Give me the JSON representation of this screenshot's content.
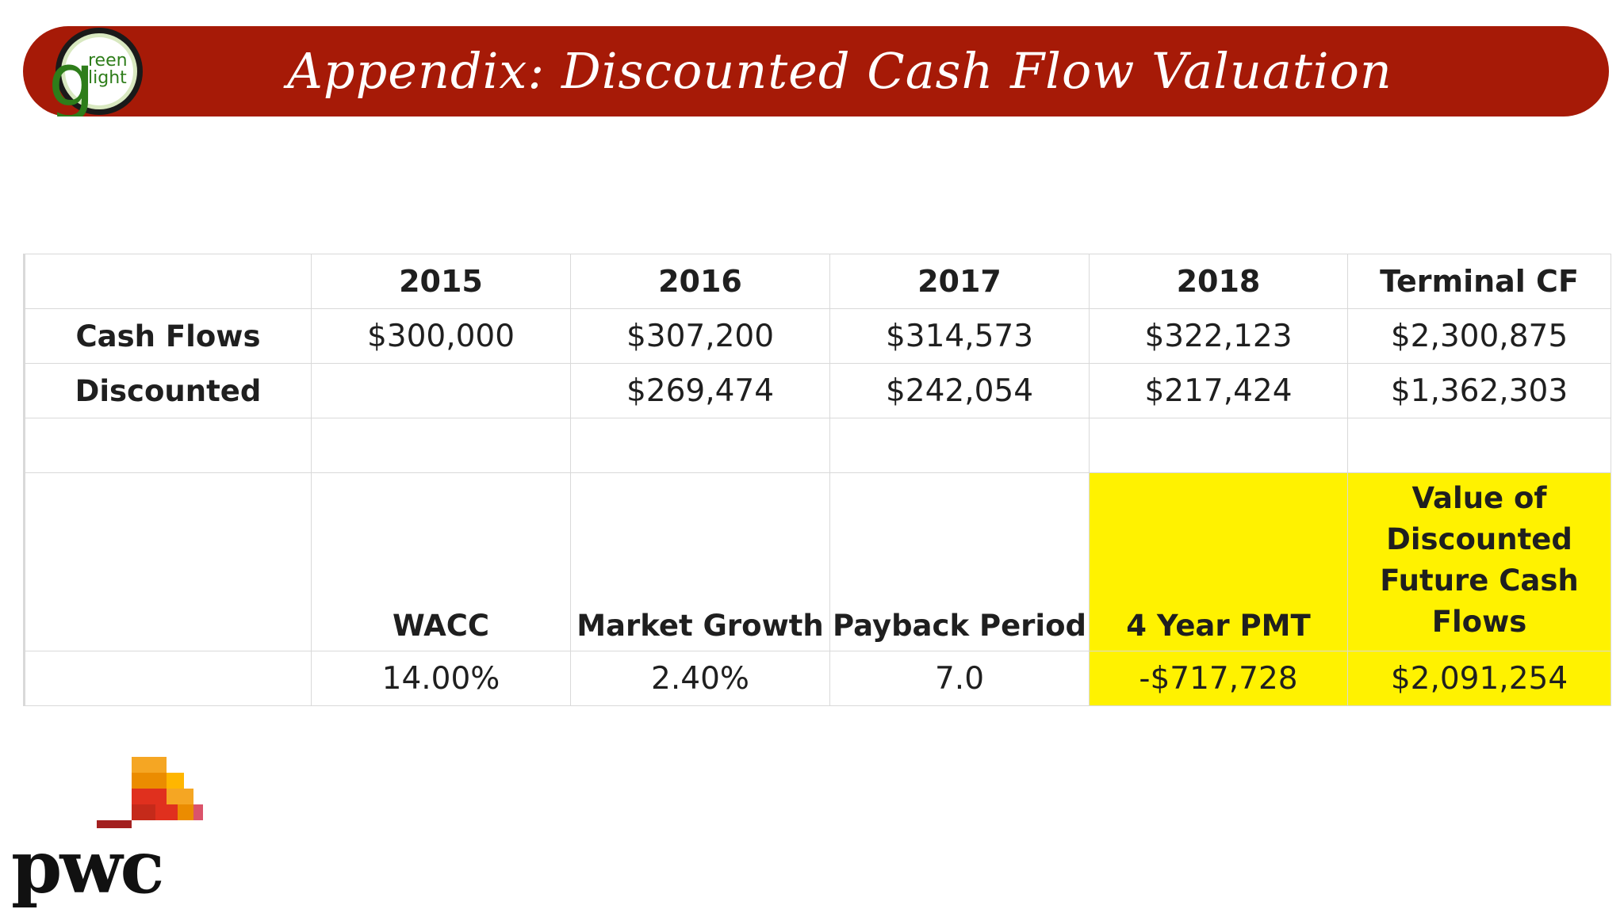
{
  "header": {
    "title": "Appendix: Discounted Cash Flow Valuation",
    "logo_text_top": "reen",
    "logo_text_bottom": "light",
    "logo_letter": "g"
  },
  "table": {
    "columns": [
      "",
      "2015",
      "2016",
      "2017",
      "2018",
      "Terminal CF"
    ],
    "rows": [
      {
        "label": "Cash Flows",
        "values": [
          "$300,000",
          "$307,200",
          "$314,573",
          "$322,123",
          "$2,300,875"
        ]
      },
      {
        "label": "Discounted",
        "values": [
          "",
          "$269,474",
          "$242,054",
          "$217,424",
          "$1,362,303"
        ]
      }
    ],
    "metrics": {
      "labels": [
        "",
        "WACC",
        "Market Growth",
        "Payback Period",
        "4 Year PMT",
        "Value of Discounted Future Cash Flows"
      ],
      "values": [
        "",
        "14.00%",
        "2.40%",
        "7.0",
        "-$717,728",
        "$2,091,254"
      ]
    },
    "highlight_color": "#fff200"
  },
  "footer": {
    "brand": "pwc"
  },
  "colors": {
    "banner": "#a61a07",
    "logo_green": "#2e7d1a"
  }
}
